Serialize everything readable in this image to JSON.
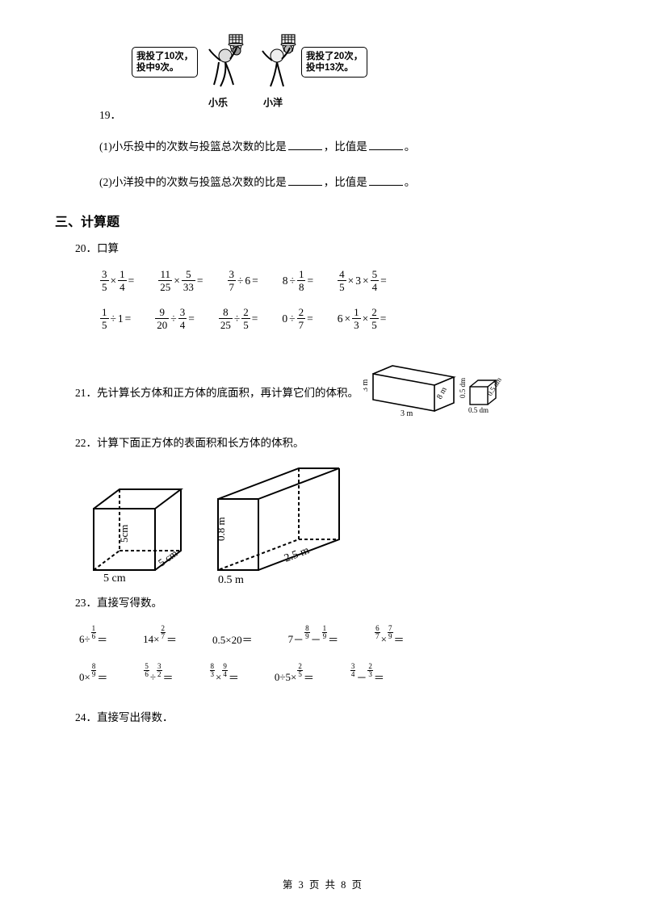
{
  "cartoon": {
    "speech1": "我投了10次，<br>投中9次。",
    "speech2": "我投了20次，<br>投中13次。",
    "child1": "小乐",
    "child2": "小洋"
  },
  "q19": {
    "num": "19．",
    "s1a": "(1)小乐投中的次数与投篮总次数的比是",
    "s1b": "，比值是",
    "s1c": "。",
    "s2a": "(2)小洋投中的次数与投篮总次数的比是",
    "s2b": "，比值是",
    "s2c": "。"
  },
  "sec3": "三、计算题",
  "q20": {
    "num": "20．",
    "t": "口算"
  },
  "q20row1": [
    {
      "a": {
        "n": "3",
        "d": "5"
      },
      "op": "×",
      "b": {
        "n": "1",
        "d": "4"
      }
    },
    {
      "a": {
        "n": "11",
        "d": "25"
      },
      "op": "×",
      "b": {
        "n": "5",
        "d": "33"
      }
    },
    {
      "a": {
        "n": "3",
        "d": "7"
      },
      "op": "÷",
      "b": "6"
    },
    {
      "a": "8",
      "op": "÷",
      "b": {
        "n": "1",
        "d": "8"
      }
    },
    {
      "a": {
        "n": "4",
        "d": "5"
      },
      "op": "×",
      "b": "3",
      "op2": "×",
      "c": {
        "n": "5",
        "d": "4"
      }
    }
  ],
  "q20row2": [
    {
      "a": {
        "n": "1",
        "d": "5"
      },
      "op": "÷",
      "b": "1"
    },
    {
      "a": {
        "n": "9",
        "d": "20"
      },
      "op": "÷",
      "b": {
        "n": "3",
        "d": "4"
      }
    },
    {
      "a": {
        "n": "8",
        "d": "25"
      },
      "op": "÷",
      "b": {
        "n": "2",
        "d": "5"
      }
    },
    {
      "a": "0",
      "op": "÷",
      "b": {
        "n": "2",
        "d": "7"
      }
    },
    {
      "a": "6",
      "op": "×",
      "b": {
        "n": "1",
        "d": "3"
      },
      "op2": "×",
      "c": {
        "n": "2",
        "d": "5"
      }
    }
  ],
  "q21": {
    "num": "21．",
    "t": "先计算长方体和正方体的底面积，再计算它们的体积。",
    "cuboid": {
      "l": "8 m",
      "w": "3 m",
      "h": "3 m"
    },
    "cube": {
      "s1": "0.5 dm",
      "s2": "0.5 dm",
      "s3": "0.5 dm"
    }
  },
  "q22": {
    "num": "22．",
    "t": "计算下面正方体的表面积和长方体的体积。",
    "cube": {
      "e": "5cm",
      "e2": "5 cm",
      "e3": "5 cm"
    },
    "cuboid": {
      "l": "2.5 m",
      "w": "0.5 m",
      "h": "0.8 m"
    }
  },
  "q23": {
    "num": "23．",
    "t": "直接写得数。"
  },
  "q23row1": [
    {
      "a": "6",
      "op": "÷",
      "sf": {
        "n": "1",
        "d": "6"
      }
    },
    {
      "a": "14",
      "op": "×",
      "sf": {
        "n": "2",
        "d": "7"
      }
    },
    {
      "plain": "0.5×20＝"
    },
    {
      "a": "7",
      "op": "－",
      "sf": {
        "n": "8",
        "d": "9"
      },
      "op2": "－",
      "sf2": {
        "n": "1",
        "d": "9"
      }
    },
    {
      "sf": {
        "n": "6",
        "d": "7"
      },
      "op": "×",
      "sf2": {
        "n": "7",
        "d": "9"
      }
    }
  ],
  "q23row2": [
    {
      "a": "0",
      "op": "×",
      "sf": {
        "n": "8",
        "d": "9"
      }
    },
    {
      "sf": {
        "n": "5",
        "d": "6"
      },
      "op": "÷",
      "sf2": {
        "n": "3",
        "d": "2"
      }
    },
    {
      "sf": {
        "n": "8",
        "d": "3"
      },
      "op": "×",
      "sf2": {
        "n": "9",
        "d": "4"
      }
    },
    {
      "a": "0÷5",
      "op": "×",
      "sf": {
        "n": "2",
        "d": "5"
      }
    },
    {
      "sf": {
        "n": "3",
        "d": "4"
      },
      "op": "－",
      "sf2": {
        "n": "2",
        "d": "3"
      }
    }
  ],
  "q24": {
    "num": "24．",
    "t": "直接写出得数．"
  },
  "footer": "第 3 页 共 8 页"
}
